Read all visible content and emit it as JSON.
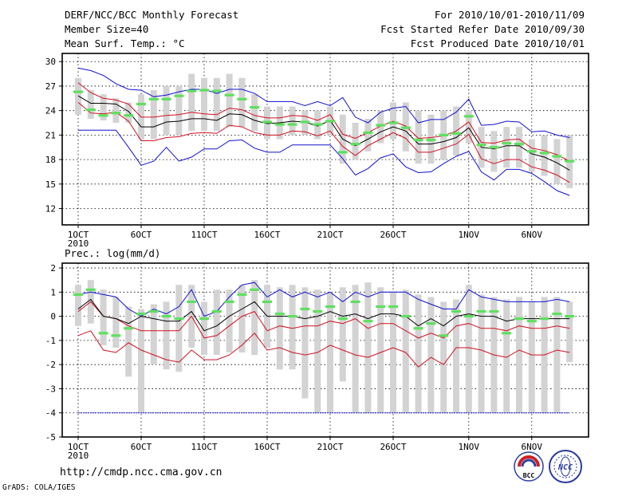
{
  "header": {
    "left": [
      "DERF/NCC/BCC Monthly Forecast",
      "Member Size=40",
      "Mean Surf. Temp.: °C"
    ],
    "right": [
      "For 2010/10/01-2010/11/09",
      "Fcst Started Refer Date 2010/09/30",
      "Fcst Produced Date 2010/10/01"
    ]
  },
  "footer": {
    "url": "http://cmdp.ncc.cma.gov.cn",
    "credit": "GrADS: COLA/IGES",
    "logo_bcc": "BCC",
    "logo_ncc": "NCC"
  },
  "colors": {
    "bars": "#d3d3d3",
    "green": "#5ee05e",
    "mean": "#000000",
    "inner": "#d01020",
    "outer": "#1010d0",
    "floor": "#1010d0"
  },
  "chart_data": [
    {
      "type": "line",
      "title": "Mean Surf. Temp.: °C",
      "x": [
        1,
        2,
        3,
        4,
        5,
        6,
        7,
        8,
        9,
        10,
        11,
        12,
        13,
        14,
        15,
        16,
        17,
        18,
        19,
        20,
        21,
        22,
        23,
        24,
        25,
        26,
        27,
        28,
        29,
        30,
        31,
        32,
        33,
        34,
        35,
        36,
        37,
        38,
        39,
        40
      ],
      "x_tick_labels": [
        "1OCT",
        "6OCT",
        "11OCT",
        "16OCT",
        "21OCT",
        "26OCT",
        "1NOV",
        "6NOV"
      ],
      "x_tick_positions": [
        1,
        6,
        11,
        16,
        21,
        26,
        32,
        37
      ],
      "year_label": "2010",
      "ylim": [
        10,
        31
      ],
      "y_ticks": [
        12,
        15,
        18,
        21,
        24,
        27,
        30
      ],
      "series": [
        {
          "name": "max",
          "values": [
            29.2,
            28.9,
            28.3,
            27.3,
            26.6,
            26.5,
            25.7,
            25.9,
            26.3,
            26.6,
            26.6,
            26.1,
            26.6,
            26.6,
            26.1,
            25.1,
            25.1,
            25.1,
            24.6,
            25.1,
            24.6,
            25.6,
            23.2,
            22.5,
            23.8,
            24.3,
            24.5,
            22.5,
            22.9,
            22.9,
            23.8,
            25.4,
            22.2,
            22.3,
            22.7,
            22.6,
            21.4,
            21.5,
            21.0,
            20.7
          ]
        },
        {
          "name": "upper",
          "values": [
            27.4,
            26.2,
            25.5,
            25.3,
            24.8,
            23.2,
            23.2,
            23.4,
            23.5,
            23.8,
            23.6,
            23.5,
            24.3,
            24.1,
            23.4,
            23.1,
            23.1,
            23.4,
            23.3,
            22.8,
            23.5,
            21.1,
            20.6,
            21.3,
            22.1,
            22.7,
            22.1,
            20.6,
            20.7,
            20.9,
            21.5,
            22.6,
            20.1,
            20.0,
            20.4,
            20.5,
            19.4,
            19.1,
            18.6,
            17.8
          ]
        },
        {
          "name": "mean",
          "values": [
            25.8,
            24.9,
            24.9,
            24.8,
            23.9,
            22.0,
            22.0,
            22.6,
            22.7,
            23.0,
            23.0,
            22.8,
            23.6,
            23.5,
            22.8,
            22.4,
            22.5,
            22.7,
            22.6,
            22.1,
            22.8,
            20.5,
            19.7,
            20.5,
            21.4,
            22.0,
            21.5,
            19.9,
            19.9,
            20.2,
            20.7,
            21.9,
            19.5,
            19.3,
            19.7,
            19.7,
            18.7,
            18.3,
            17.6,
            16.7
          ]
        },
        {
          "name": "lower",
          "values": [
            25.0,
            23.7,
            23.6,
            23.8,
            22.7,
            20.3,
            20.3,
            20.7,
            20.8,
            21.2,
            21.3,
            21.2,
            22.2,
            22.0,
            21.3,
            21.0,
            21.0,
            21.5,
            21.4,
            20.9,
            21.5,
            19.6,
            18.5,
            19.7,
            20.5,
            21.3,
            20.6,
            18.9,
            18.9,
            19.4,
            19.9,
            21.1,
            18.1,
            17.5,
            18.0,
            18.0,
            17.1,
            16.7,
            16.1,
            15.2
          ]
        },
        {
          "name": "min",
          "values": [
            21.6,
            21.6,
            21.6,
            21.6,
            19.5,
            17.3,
            17.8,
            19.5,
            17.8,
            18.3,
            19.3,
            19.3,
            20.3,
            20.4,
            19.4,
            18.9,
            18.9,
            19.8,
            19.8,
            19.8,
            19.8,
            18.1,
            16.1,
            16.9,
            18.2,
            18.7,
            17.1,
            16.4,
            16.5,
            17.5,
            18.4,
            19.0,
            16.5,
            15.5,
            16.8,
            16.8,
            16.3,
            15.3,
            14.2,
            13.6
          ]
        },
        {
          "name": "observed",
          "values": [
            26.3,
            24.1,
            23.4,
            23.7,
            23.4,
            24.8,
            25.4,
            25.4,
            25.8,
            26.4,
            26.5,
            26.4,
            25.9,
            25.4,
            24.4,
            22.6,
            22.3,
            22.3,
            22.6,
            22.3,
            22.7,
            18.9,
            19.9,
            21.3,
            22.2,
            22.5,
            21.9,
            20.4,
            20.4,
            21.0,
            21.2,
            23.3,
            19.8,
            19.5,
            20.0,
            19.9,
            19.0,
            18.8,
            18.4,
            17.8
          ]
        }
      ],
      "spread_bars": {
        "low": [
          23.5,
          23.0,
          22.8,
          22.5,
          22.5,
          20.5,
          20.5,
          21.0,
          21.0,
          21.5,
          21.5,
          21.5,
          22.0,
          22.0,
          21.5,
          20.5,
          20.5,
          21.0,
          21.0,
          20.5,
          21.0,
          17.5,
          18.0,
          19.0,
          20.0,
          20.5,
          19.0,
          17.5,
          17.5,
          18.0,
          18.5,
          20.0,
          17.0,
          16.5,
          17.0,
          17.0,
          16.5,
          16.0,
          15.0,
          14.5
        ],
        "high": [
          28.0,
          26.5,
          26.0,
          25.5,
          25.0,
          26.0,
          26.5,
          27.0,
          27.0,
          28.5,
          28.0,
          28.0,
          28.5,
          28.0,
          26.0,
          24.5,
          24.5,
          24.5,
          24.0,
          24.0,
          24.5,
          23.5,
          22.5,
          23.0,
          24.0,
          25.0,
          25.0,
          24.0,
          23.5,
          24.0,
          24.5,
          24.0,
          22.0,
          21.5,
          22.0,
          22.0,
          20.5,
          21.0,
          20.5,
          21.0
        ]
      }
    },
    {
      "type": "line",
      "title": "Prec.: log(mm/d)",
      "x": [
        1,
        2,
        3,
        4,
        5,
        6,
        7,
        8,
        9,
        10,
        11,
        12,
        13,
        14,
        15,
        16,
        17,
        18,
        19,
        20,
        21,
        22,
        23,
        24,
        25,
        26,
        27,
        28,
        29,
        30,
        31,
        32,
        33,
        34,
        35,
        36,
        37,
        38,
        39,
        40
      ],
      "x_tick_labels": [
        "1OCT",
        "6OCT",
        "11OCT",
        "16OCT",
        "21OCT",
        "26OCT",
        "1NOV",
        "6NOV"
      ],
      "x_tick_positions": [
        1,
        6,
        11,
        16,
        21,
        26,
        32,
        37
      ],
      "year_label": "2010",
      "ylim": [
        -5,
        2.2
      ],
      "y_ticks": [
        -5,
        -4,
        -3,
        -2,
        -1,
        0,
        1,
        2
      ],
      "floor_value": -4,
      "series": [
        {
          "name": "max",
          "values": [
            0.9,
            1.0,
            0.9,
            0.8,
            0.3,
            0.0,
            0.3,
            0.1,
            0.4,
            1.1,
            0.0,
            0.2,
            0.8,
            1.3,
            1.4,
            0.8,
            1.1,
            0.8,
            1.0,
            0.8,
            1.0,
            0.6,
            1.0,
            0.8,
            1.0,
            1.0,
            1.0,
            0.7,
            0.5,
            0.3,
            0.3,
            1.1,
            0.8,
            0.7,
            0.6,
            0.6,
            0.6,
            0.6,
            0.7,
            0.6
          ]
        },
        {
          "name": "upper",
          "values": [
            0.2,
            0.6,
            0.0,
            -0.1,
            -0.4,
            -0.6,
            -0.6,
            -0.6,
            -0.6,
            0.0,
            -0.9,
            -0.8,
            -0.4,
            0.0,
            0.2,
            -0.6,
            -0.4,
            -0.5,
            -0.4,
            -0.4,
            -0.2,
            -0.3,
            -0.1,
            -0.5,
            -0.3,
            -0.3,
            -0.6,
            -0.9,
            -0.7,
            -0.9,
            -0.4,
            -0.3,
            -0.5,
            -0.5,
            -0.6,
            -0.4,
            -0.5,
            -0.5,
            -0.4,
            -0.5
          ]
        },
        {
          "name": "mean",
          "values": [
            0.3,
            0.7,
            0.0,
            -0.1,
            -0.3,
            0.0,
            -0.1,
            -0.2,
            -0.2,
            0.2,
            -0.6,
            -0.4,
            0.0,
            0.3,
            0.6,
            0.0,
            0.0,
            0.0,
            -0.1,
            0.0,
            0.2,
            0.0,
            0.1,
            -0.1,
            0.1,
            0.1,
            0.0,
            -0.4,
            -0.1,
            -0.4,
            0.0,
            0.1,
            0.0,
            0.0,
            -0.2,
            -0.1,
            -0.1,
            -0.1,
            -0.1,
            -0.1
          ]
        },
        {
          "name": "lower",
          "values": [
            -0.8,
            -0.6,
            -1.4,
            -1.5,
            -1.1,
            -1.4,
            -1.6,
            -1.8,
            -1.9,
            -1.4,
            -1.8,
            -1.8,
            -1.6,
            -1.2,
            -0.7,
            -1.4,
            -1.3,
            -1.5,
            -1.6,
            -1.5,
            -1.2,
            -1.4,
            -1.6,
            -1.7,
            -1.5,
            -1.3,
            -1.5,
            -2.1,
            -1.7,
            -2.0,
            -1.3,
            -1.3,
            -1.4,
            -1.6,
            -1.7,
            -1.4,
            -1.6,
            -1.6,
            -1.4,
            -1.5
          ]
        },
        {
          "name": "observed",
          "values": [
            0.9,
            1.1,
            -0.7,
            -0.8,
            -0.5,
            0.1,
            0.2,
            0.0,
            -0.1,
            0.6,
            -0.1,
            0.2,
            0.6,
            0.9,
            1.1,
            0.6,
            0.1,
            0.0,
            0.3,
            0.2,
            0.4,
            -0.1,
            0.6,
            -0.2,
            0.4,
            0.4,
            0.0,
            -0.5,
            -0.3,
            -0.8,
            0.2,
            0.0,
            0.2,
            0.2,
            -0.7,
            -0.1,
            -0.2,
            -0.1,
            0.1,
            0.0
          ]
        }
      ],
      "spread_bars": {
        "low": [
          -0.4,
          -0.3,
          -1.2,
          -1.3,
          -2.5,
          -4.0,
          -2.0,
          -2.2,
          -2.3,
          -1.3,
          -1.6,
          -1.6,
          -1.5,
          -1.5,
          -1.6,
          -1.3,
          -2.2,
          -2.2,
          -3.4,
          -4.0,
          -4.0,
          -2.7,
          -4.0,
          -4.0,
          -4.0,
          -4.0,
          -4.0,
          -4.0,
          -4.0,
          -4.0,
          -4.0,
          -4.0,
          -4.0,
          -4.0,
          -4.0,
          -4.0,
          -4.0,
          -4.0,
          -4.0,
          -1.9
        ],
        "high": [
          1.3,
          1.5,
          1.1,
          0.8,
          0.4,
          0.3,
          0.5,
          0.6,
          1.3,
          1.3,
          0.6,
          1.1,
          1.1,
          1.3,
          1.5,
          1.3,
          1.2,
          1.3,
          1.2,
          1.1,
          1.0,
          1.2,
          1.3,
          1.4,
          1.2,
          1.0,
          1.1,
          0.9,
          0.8,
          0.6,
          0.7,
          1.3,
          0.9,
          0.8,
          0.7,
          0.8,
          0.6,
          0.8,
          0.8,
          0.6
        ]
      }
    }
  ]
}
